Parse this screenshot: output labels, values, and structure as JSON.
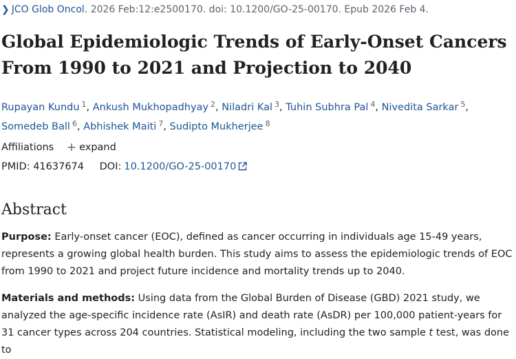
{
  "citation": {
    "chevron_icon": "chevron-right-icon",
    "journal": "JCO Glob Oncol.",
    "details": "2026 Feb:12:e2500170. doi: 10.1200/GO-25-00170. Epub 2026 Feb 4."
  },
  "title": "Global Epidemiologic Trends of Early-Onset Cancers From 1990 to 2021 and Projection to 2040",
  "authors": [
    {
      "name": "Rupayan Kundu",
      "sup": "1"
    },
    {
      "name": "Ankush Mukhopadhyay",
      "sup": "2"
    },
    {
      "name": "Niladri Kal",
      "sup": "3"
    },
    {
      "name": "Tuhin Subhra Pal",
      "sup": "4"
    },
    {
      "name": "Nivedita Sarkar",
      "sup": "5"
    },
    {
      "name": "Somedeb Ball",
      "sup": "6"
    },
    {
      "name": "Abhishek Maiti",
      "sup": "7"
    },
    {
      "name": "Sudipto Mukherjee",
      "sup": "8"
    }
  ],
  "affiliations": {
    "label": "Affiliations",
    "toggle_icon": "plus-icon",
    "expand_label": "expand"
  },
  "ids": {
    "pmid_label": "PMID:",
    "pmid": "41637674",
    "doi_label": "DOI:",
    "doi": "10.1200/GO-25-00170",
    "link_icon": "external-link-icon"
  },
  "abstract": {
    "heading": "Abstract",
    "purpose_label": "Purpose:",
    "purpose_text": " Early-onset cancer (EOC), defined as cancer occurring in individuals age 15-49 years, represents a growing global health burden. This study aims to assess the epidemiologic trends of EOC from 1990 to 2021 and project future incidence and mortality trends up to 2040.",
    "methods_label": "Materials and methods:",
    "methods_text_1": " Using data from the Global Burden of Disease (GBD) 2021 study, we analyzed the age-specific incidence rate (AsIR) and death rate (AsDR) per 100,000 patient-years for 31 cancer types across 204 countries. Statistical modeling, including the two sample ",
    "methods_italic": "t",
    "methods_text_2": " test, was done to"
  },
  "colors": {
    "link": "#205493",
    "text": "#212121",
    "muted": "#5b616b"
  }
}
